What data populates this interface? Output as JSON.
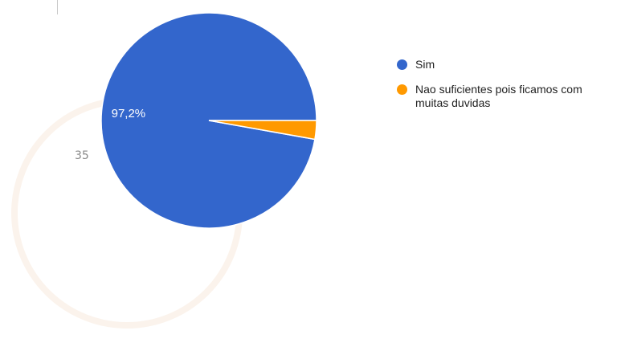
{
  "page": {
    "slide_number": "35"
  },
  "chart_data": {
    "type": "pie",
    "title": "",
    "categories": [
      "Sim",
      "Nao suficientes pois ficamos com muitas duvidas"
    ],
    "values": [
      97.2,
      2.8
    ],
    "colors": [
      "#3366cc",
      "#ff9900"
    ],
    "slice_labels": [
      "97,2%",
      ""
    ],
    "legend_position": "right"
  }
}
